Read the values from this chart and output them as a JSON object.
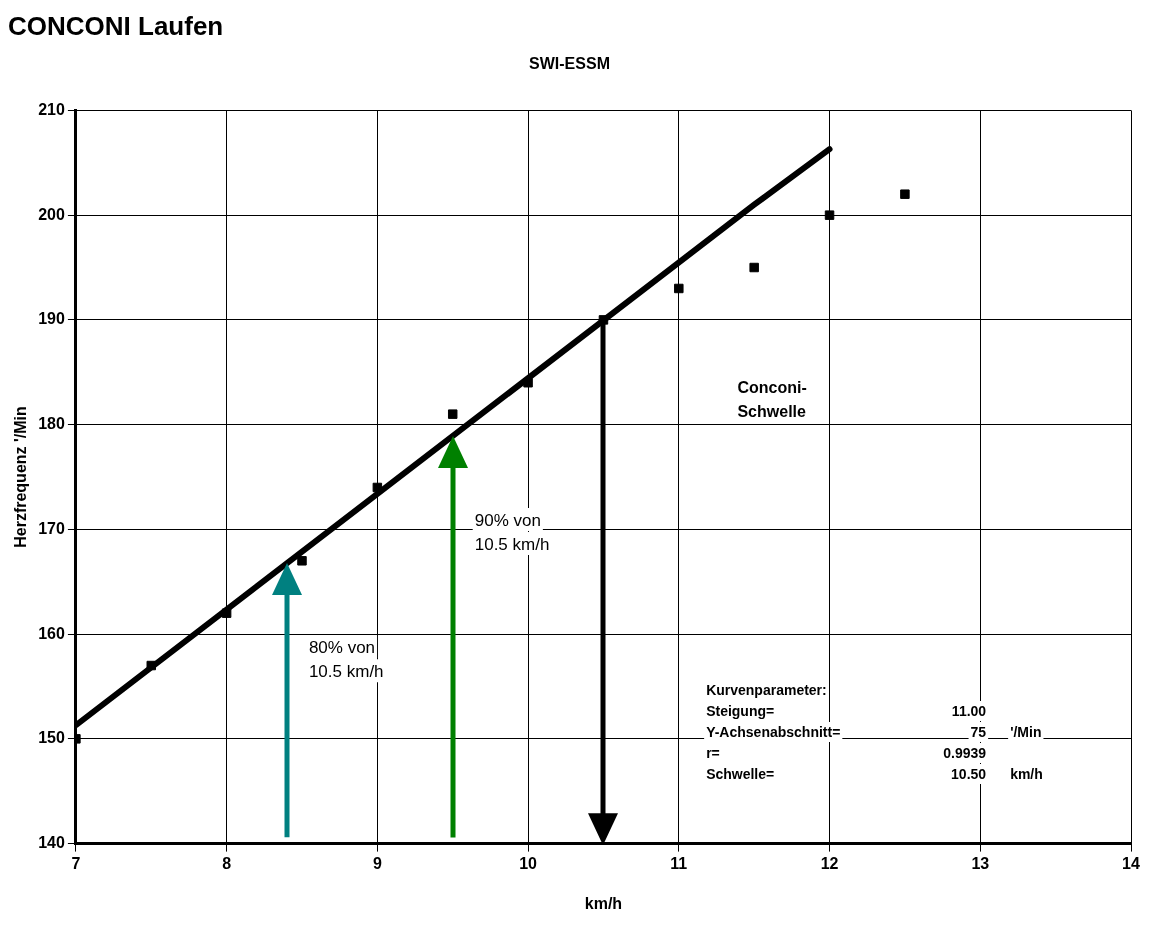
{
  "chart_data": {
    "type": "scatter",
    "title": "CONCONI Laufen",
    "subtitle": "SWI-ESSM",
    "xlabel": "km/h",
    "ylabel": "Herzfrequenz '/Min",
    "series": [
      {
        "type": "scatter",
        "marker": "square",
        "color": "#000000",
        "x": [
          7,
          7.5,
          8,
          8.5,
          9,
          9.5,
          10,
          10.5,
          11,
          11.5,
          12,
          12.5
        ],
        "values": [
          150,
          157,
          162,
          167,
          174,
          181,
          184,
          190,
          193,
          195,
          200,
          202
        ]
      },
      {
        "type": "line",
        "marker": "none",
        "color": "#000000",
        "x": [
          7,
          11.5,
          12
        ],
        "values": [
          151.3,
          201,
          206.3
        ]
      }
    ],
    "xlim": [
      7,
      14
    ],
    "xticks": [
      7,
      8,
      9,
      10,
      11,
      12,
      13,
      14
    ],
    "ylim": [
      140,
      210
    ],
    "yticks": [
      140,
      150,
      160,
      170,
      180,
      190,
      200,
      210
    ],
    "grid": true,
    "legend": false,
    "ref_lines": [
      {
        "axis": "x",
        "value": 8.4,
        "label": "80% von\n10.5 km/h",
        "color": "#008080"
      },
      {
        "axis": "x",
        "value": 9.5,
        "label": "90% von\n10.5 km/h",
        "color": "#008000"
      },
      {
        "axis": "x",
        "value": 10.5,
        "color": "#000000"
      }
    ],
    "annotations": [
      "Conconi-\nSchwelle",
      "Kurvenparameter:",
      "Steigung=\t11.00\t",
      "Y-Achsenabschnitt=\t75\t'/Min",
      "r=\t0.9939\t",
      "Schwelle=\t10.50\tkm/h"
    ]
  }
}
